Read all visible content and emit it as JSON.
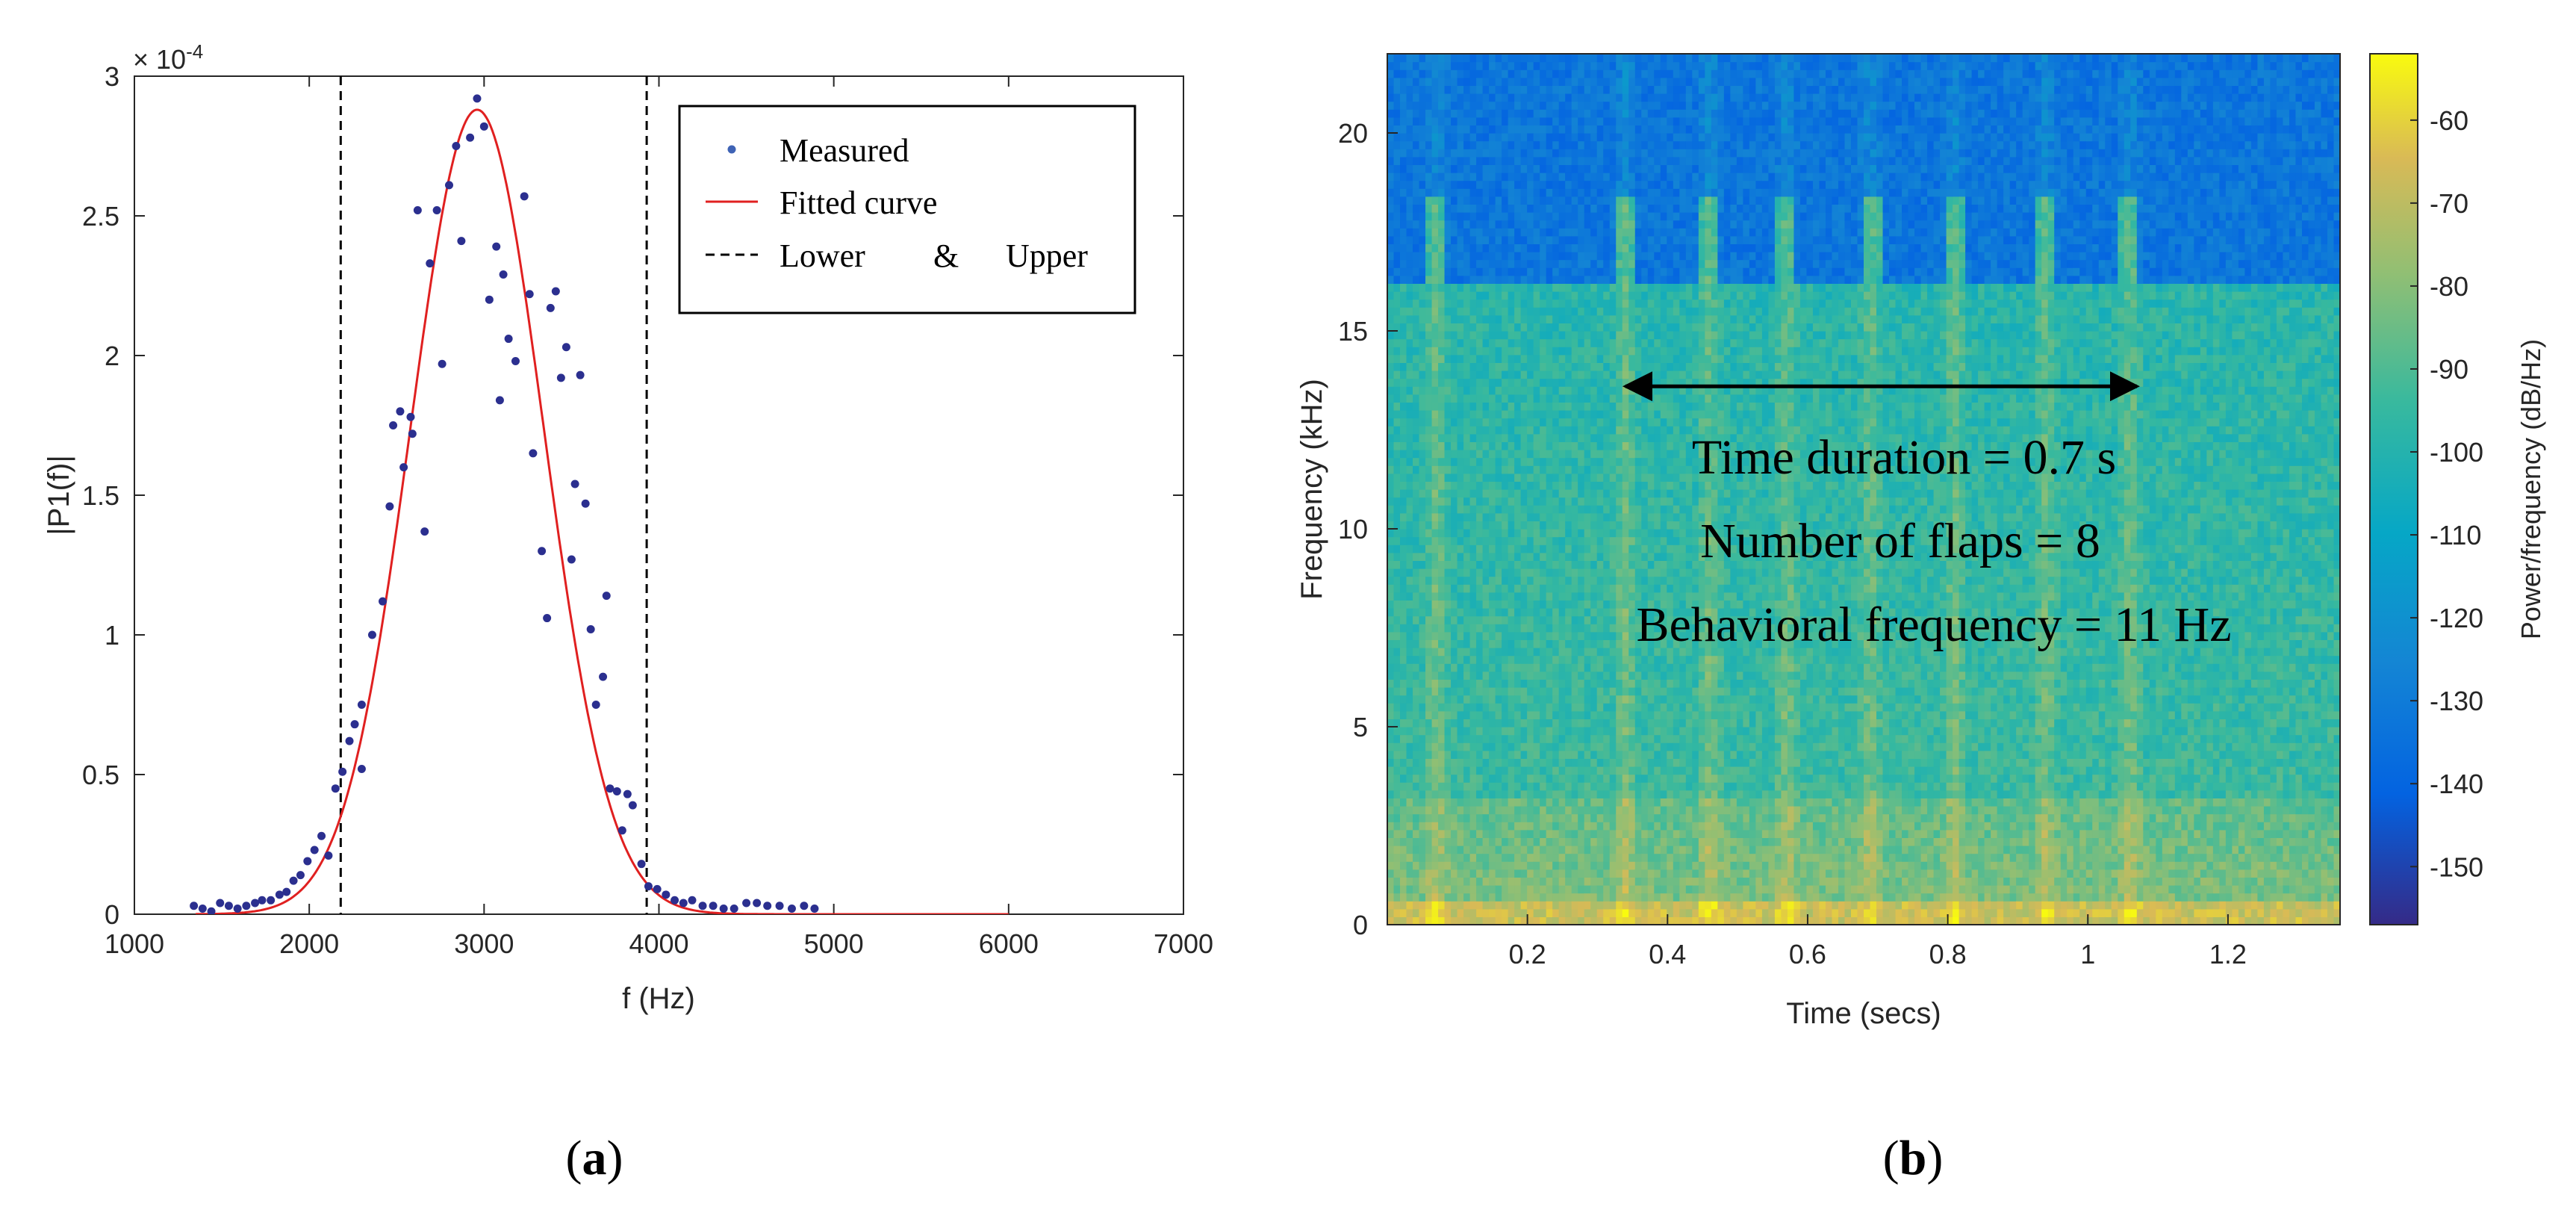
{
  "chart_data": [
    {
      "type": "scatter",
      "panel_label": "a",
      "title": "",
      "xlabel": "f (Hz)",
      "ylabel": "|P1(f)|",
      "xlim": [
        1000,
        7000
      ],
      "ylim": [
        0,
        3
      ],
      "y_multiplier": "× 10",
      "y_multiplier_exp": "-4",
      "xticks": [
        1000,
        2000,
        3000,
        4000,
        5000,
        6000,
        7000
      ],
      "yticks": [
        0,
        0.5,
        1,
        1.5,
        2,
        2.5,
        3
      ],
      "ytick_labels": [
        "0",
        "0.5",
        "1",
        "1.5",
        "2",
        "2.5",
        "3"
      ],
      "legend": {
        "placement": "top-right",
        "entries": [
          {
            "label": "Measured",
            "style": "dots",
            "color": "#2b2f8f"
          },
          {
            "label": "Fitted curve",
            "style": "line",
            "color": "#e02020"
          },
          {
            "label": "Lower",
            "label_mid": "&",
            "label_right": "Upper",
            "style": "dashed",
            "color": "#000000"
          }
        ]
      },
      "vlines": [
        {
          "name": "Lower",
          "x": 2180
        },
        {
          "name": "Upper",
          "x": 3930
        }
      ],
      "fit": {
        "name": "Fitted curve",
        "type": "gaussian",
        "amplitude": 2.88,
        "mean": 2960,
        "sigma": 380,
        "x_start": 1350,
        "x_end": 6000,
        "color": "#e02020"
      },
      "series": [
        {
          "name": "Measured",
          "color": "#2b2f8f",
          "points": [
            [
              1340,
              0.03
            ],
            [
              1390,
              0.02
            ],
            [
              1440,
              0.01
            ],
            [
              1490,
              0.04
            ],
            [
              1540,
              0.03
            ],
            [
              1590,
              0.02
            ],
            [
              1640,
              0.03
            ],
            [
              1690,
              0.04
            ],
            [
              1730,
              0.05
            ],
            [
              1780,
              0.05
            ],
            [
              1830,
              0.07
            ],
            [
              1870,
              0.08
            ],
            [
              1910,
              0.12
            ],
            [
              1950,
              0.14
            ],
            [
              1990,
              0.19
            ],
            [
              2030,
              0.23
            ],
            [
              2070,
              0.28
            ],
            [
              2110,
              0.21
            ],
            [
              2150,
              0.45
            ],
            [
              2190,
              0.51
            ],
            [
              2230,
              0.62
            ],
            [
              2260,
              0.68
            ],
            [
              2300,
              0.75
            ],
            [
              2300,
              0.52
            ],
            [
              2360,
              1.0
            ],
            [
              2420,
              1.12
            ],
            [
              2460,
              1.46
            ],
            [
              2480,
              1.75
            ],
            [
              2520,
              1.8
            ],
            [
              2540,
              1.6
            ],
            [
              2580,
              1.78
            ],
            [
              2590,
              1.72
            ],
            [
              2620,
              2.52
            ],
            [
              2660,
              1.37
            ],
            [
              2690,
              2.33
            ],
            [
              2730,
              2.52
            ],
            [
              2760,
              1.97
            ],
            [
              2800,
              2.61
            ],
            [
              2840,
              2.75
            ],
            [
              2870,
              2.41
            ],
            [
              2920,
              2.78
            ],
            [
              2960,
              2.92
            ],
            [
              3000,
              2.82
            ],
            [
              3030,
              2.2
            ],
            [
              3070,
              2.39
            ],
            [
              3090,
              1.84
            ],
            [
              3110,
              2.29
            ],
            [
              3140,
              2.06
            ],
            [
              3180,
              1.98
            ],
            [
              3230,
              2.57
            ],
            [
              3260,
              2.22
            ],
            [
              3280,
              1.65
            ],
            [
              3330,
              1.3
            ],
            [
              3360,
              1.06
            ],
            [
              3380,
              2.17
            ],
            [
              3410,
              2.23
            ],
            [
              3440,
              1.92
            ],
            [
              3470,
              2.03
            ],
            [
              3500,
              1.27
            ],
            [
              3520,
              1.54
            ],
            [
              3550,
              1.93
            ],
            [
              3580,
              1.47
            ],
            [
              3610,
              1.02
            ],
            [
              3640,
              0.75
            ],
            [
              3680,
              0.85
            ],
            [
              3700,
              1.14
            ],
            [
              3720,
              0.45
            ],
            [
              3760,
              0.44
            ],
            [
              3790,
              0.3
            ],
            [
              3820,
              0.43
            ],
            [
              3850,
              0.39
            ],
            [
              3900,
              0.18
            ],
            [
              3940,
              0.1
            ],
            [
              3990,
              0.09
            ],
            [
              4040,
              0.07
            ],
            [
              4090,
              0.05
            ],
            [
              4140,
              0.04
            ],
            [
              4190,
              0.05
            ],
            [
              4250,
              0.03
            ],
            [
              4310,
              0.03
            ],
            [
              4370,
              0.02
            ],
            [
              4430,
              0.02
            ],
            [
              4500,
              0.04
            ],
            [
              4560,
              0.04
            ],
            [
              4620,
              0.03
            ],
            [
              4690,
              0.03
            ],
            [
              4760,
              0.02
            ],
            [
              4830,
              0.03
            ],
            [
              4890,
              0.02
            ]
          ]
        }
      ]
    },
    {
      "type": "heatmap",
      "panel_label": "b",
      "title": "",
      "xlabel": "Time (secs)",
      "ylabel": "Frequency (kHz)",
      "xlim": [
        0,
        1.36
      ],
      "ylim": [
        0,
        22
      ],
      "xticks": [
        0.2,
        0.4,
        0.6,
        0.8,
        1,
        1.2
      ],
      "xtick_labels": [
        "0.2",
        "0.4",
        "0.6",
        "0.8",
        "1",
        "1.2"
      ],
      "yticks": [
        0,
        5,
        10,
        15,
        20
      ],
      "colorbar": {
        "label": "Power/frequency (dB/Hz)",
        "range": [
          -157,
          -52
        ],
        "ticks": [
          -60,
          -70,
          -80,
          -90,
          -100,
          -110,
          -120,
          -130,
          -140,
          -150
        ],
        "colormap": "parula"
      },
      "flap_times": [
        0.07,
        0.34,
        0.46,
        0.57,
        0.69,
        0.81,
        0.94,
        1.06
      ],
      "cutoff_khz": 16.2,
      "annotations": {
        "arrow": {
          "x_start": 0.34,
          "x_end": 1.07,
          "y_khz": 13.6
        },
        "line1": "Time duration = 0.7 s",
        "line2": "Number of flaps = 8",
        "line3": "Behavioral frequency = 11 Hz"
      }
    }
  ],
  "captions": {
    "a": "(a)",
    "b": "(b)"
  }
}
